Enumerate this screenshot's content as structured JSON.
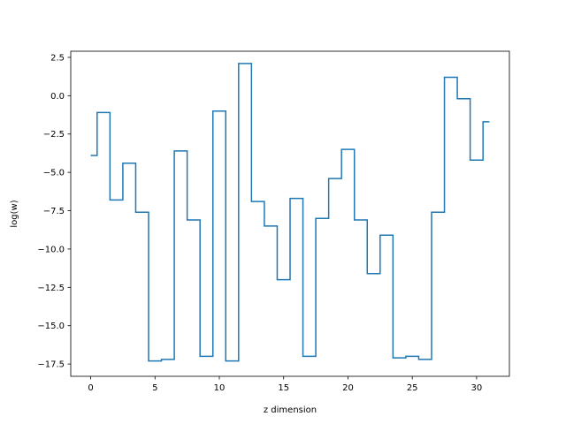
{
  "chart_data": {
    "type": "line",
    "drawstyle": "steps-mid",
    "title": "",
    "xlabel": "z dimension",
    "ylabel": "log(w)",
    "xlim": [
      -1.55,
      32.55
    ],
    "ylim": [
      -18.3,
      2.9
    ],
    "xticks": [
      0,
      5,
      10,
      15,
      20,
      25,
      30
    ],
    "yticks": [
      2.5,
      0.0,
      -2.5,
      -5.0,
      -7.5,
      -10.0,
      -12.5,
      -15.0,
      -17.5
    ],
    "ytick_labels": [
      "2.5",
      "0.0",
      "−2.5",
      "−5.0",
      "−7.5",
      "−10.0",
      "−12.5",
      "−15.0",
      "−17.5"
    ],
    "grid": false,
    "series": [
      {
        "color": "#1f77b4",
        "x": [
          0,
          1,
          2,
          3,
          4,
          5,
          6,
          7,
          8,
          9,
          10,
          11,
          12,
          13,
          14,
          15,
          16,
          17,
          18,
          19,
          20,
          21,
          22,
          23,
          24,
          25,
          26,
          27,
          28,
          29,
          30,
          31
        ],
        "y": [
          -3.9,
          -1.1,
          -6.8,
          -4.4,
          -7.6,
          -17.3,
          -17.2,
          -3.6,
          -8.1,
          -17.0,
          -1.0,
          -17.3,
          2.1,
          -6.9,
          -8.5,
          -12.0,
          -6.7,
          -17.0,
          -8.0,
          -5.4,
          -3.5,
          -8.1,
          -11.6,
          -9.1,
          -17.1,
          -17.0,
          -17.2,
          -7.6,
          1.2,
          -0.2,
          -4.2,
          -1.7
        ]
      }
    ]
  }
}
